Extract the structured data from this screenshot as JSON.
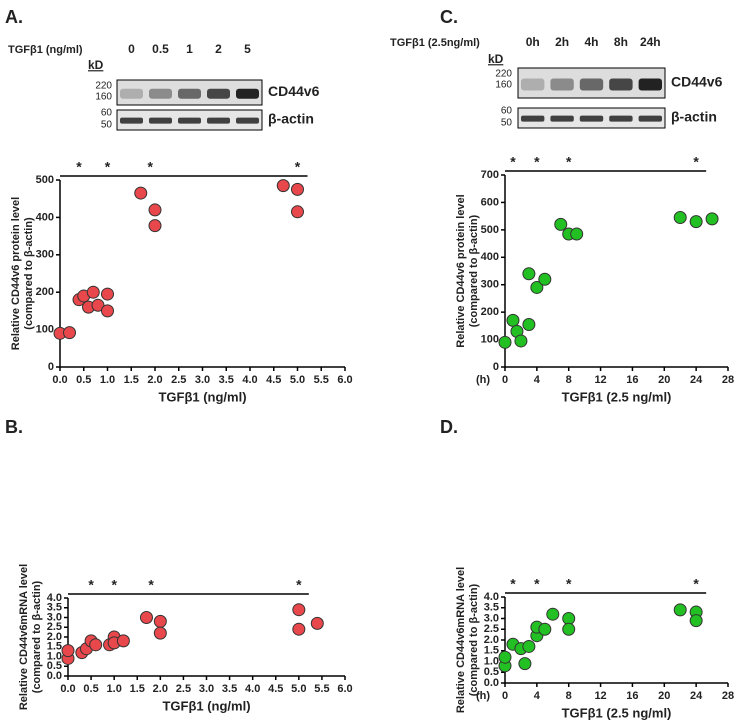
{
  "chart_data": [
    {
      "type": "scatter",
      "panel_label": "A.",
      "blot": {
        "treatment": "TGFβ1 (ng/ml)",
        "lanes": [
          "0",
          "0.5",
          "1",
          "2",
          "5"
        ],
        "unit": "kD",
        "upper_markers": [
          "220",
          "160"
        ],
        "lower_markers": [
          "60",
          "50"
        ],
        "upper_protein": "CD44v6",
        "lower_protein": "β-actin"
      },
      "xlabel": "TGFβ1 (ng/ml)",
      "ylabel": [
        "Relative CD44v6 protein level",
        "(compared to β-actin)"
      ],
      "color": "#e8474b",
      "x": [
        0,
        0.2,
        0.4,
        0.5,
        0.6,
        0.7,
        0.8,
        1.0,
        1.0,
        1.7,
        2.0,
        2.0,
        4.7,
        5.0,
        5.0
      ],
      "values": [
        90,
        92,
        180,
        190,
        160,
        200,
        165,
        195,
        150,
        465,
        420,
        378,
        485,
        475,
        415
      ],
      "xlim": [
        0,
        6
      ],
      "ylim": [
        0,
        500
      ],
      "xticks": [
        {
          "value": 0,
          "label": "0.0"
        },
        0.5,
        {
          "value": 1,
          "label": "1.0"
        },
        1.5,
        {
          "value": 2,
          "label": "2.0"
        },
        2.5,
        {
          "value": 3,
          "label": "3.0"
        },
        3.5,
        {
          "value": 4,
          "label": "4.0"
        },
        4.5,
        {
          "value": 5,
          "label": "5.0"
        },
        5.5,
        {
          "value": 6,
          "label": "6.0"
        }
      ],
      "yticks": [
        0,
        100,
        200,
        300,
        400,
        500
      ],
      "annotations": [
        {
          "text": "*",
          "x": 0.4
        },
        {
          "text": "*",
          "x": 1.0
        },
        {
          "text": "*",
          "x": 1.9
        },
        {
          "text": "*",
          "x": 5.0
        }
      ]
    },
    {
      "type": "scatter",
      "panel_label": "B.",
      "xlabel": "TGFβ1 (ng/ml)",
      "ylabel": [
        "Relative CD44v6mRNA level",
        "(compared to β-actin)"
      ],
      "color": "#e8474b",
      "x": [
        0,
        0,
        0.3,
        0.4,
        0.5,
        0.6,
        0.9,
        1.0,
        1.0,
        1.2,
        1.7,
        2.0,
        2.0,
        5.0,
        5.0,
        5.4
      ],
      "values": [
        0.9,
        1.3,
        1.2,
        1.4,
        1.8,
        1.6,
        1.6,
        2.0,
        1.7,
        1.8,
        3.0,
        2.8,
        2.2,
        3.4,
        2.4,
        2.7
      ],
      "xlim": [
        0,
        6
      ],
      "ylim": [
        0,
        4
      ],
      "xticks": [
        {
          "value": 0,
          "label": "0.0"
        },
        0.5,
        {
          "value": 1,
          "label": "1.0"
        },
        1.5,
        {
          "value": 2,
          "label": "2.0"
        },
        2.5,
        {
          "value": 3,
          "label": "3.0"
        },
        3.5,
        {
          "value": 4,
          "label": "4.0"
        },
        4.5,
        {
          "value": 5,
          "label": "5.0"
        },
        5.5,
        {
          "value": 6,
          "label": "6.0"
        }
      ],
      "yticks": [
        {
          "value": 0,
          "label": "0.0"
        },
        0.5,
        {
          "value": 1,
          "label": "1.0"
        },
        1.5,
        {
          "value": 2,
          "label": "2.0"
        },
        2.5,
        {
          "value": 3,
          "label": "3.0"
        },
        3.5,
        {
          "value": 4,
          "label": "4.0"
        }
      ],
      "annotations": [
        {
          "text": "*",
          "x": 0.5
        },
        {
          "text": "*",
          "x": 1.0
        },
        {
          "text": "*",
          "x": 1.8
        },
        {
          "text": "*",
          "x": 5.0
        }
      ]
    },
    {
      "type": "scatter",
      "panel_label": "C.",
      "blot": {
        "treatment": "TGFβ1 (2.5ng/ml)",
        "lanes": [
          "0h",
          "2h",
          "4h",
          "8h",
          "24h"
        ],
        "unit": "kD",
        "upper_markers": [
          "220",
          "160"
        ],
        "lower_markers": [
          "60",
          "50"
        ],
        "upper_protein": "CD44v6",
        "lower_protein": "β-actin"
      },
      "xlabel": "TGFβ1 (2.5 ng/ml)",
      "x_unit": "(h)",
      "ylabel": [
        "Relative CD44v6 protein level",
        "(compared to β-actin)"
      ],
      "color": "#22c022",
      "x": [
        0,
        1,
        1.5,
        2,
        3,
        3,
        4,
        5,
        7,
        8,
        9,
        22,
        24,
        26
      ],
      "values": [
        90,
        170,
        130,
        95,
        155,
        340,
        290,
        320,
        520,
        485,
        485,
        545,
        530,
        540
      ],
      "xlim": [
        0,
        28
      ],
      "ylim": [
        0,
        700
      ],
      "xticks": [
        0,
        4,
        8,
        12,
        16,
        20,
        24,
        28
      ],
      "yticks": [
        0,
        100,
        200,
        300,
        400,
        500,
        600,
        700
      ],
      "annotations": [
        {
          "text": "*",
          "x": 1
        },
        {
          "text": "*",
          "x": 4
        },
        {
          "text": "*",
          "x": 8
        },
        {
          "text": "*",
          "x": 24
        }
      ]
    },
    {
      "type": "scatter",
      "panel_label": "D.",
      "xlabel": "TGFβ1 (2.5 ng/ml)",
      "x_unit": "(h)",
      "ylabel": [
        "Relative CD44v6mRNA level",
        "(compared to β-actin)"
      ],
      "color": "#22c022",
      "x": [
        0,
        0,
        1,
        2,
        2.5,
        3,
        4,
        4,
        5,
        6,
        8,
        8,
        22,
        24,
        24
      ],
      "values": [
        0.8,
        1.2,
        1.8,
        1.6,
        0.9,
        1.7,
        2.2,
        2.6,
        2.5,
        3.2,
        3.0,
        2.5,
        3.4,
        3.3,
        2.9
      ],
      "xlim": [
        0,
        28
      ],
      "ylim": [
        0,
        4
      ],
      "xticks": [
        0,
        4,
        8,
        12,
        16,
        20,
        24,
        28
      ],
      "yticks": [
        {
          "value": 0,
          "label": "0.0"
        },
        0.5,
        {
          "value": 1,
          "label": "1.0"
        },
        1.5,
        {
          "value": 2,
          "label": "2.0"
        },
        2.5,
        {
          "value": 3,
          "label": "3.0"
        },
        3.5,
        {
          "value": 4,
          "label": "4.0"
        }
      ],
      "annotations": [
        {
          "text": "*",
          "x": 1
        },
        {
          "text": "*",
          "x": 4
        },
        {
          "text": "*",
          "x": 8
        },
        {
          "text": "*",
          "x": 24
        }
      ]
    }
  ]
}
